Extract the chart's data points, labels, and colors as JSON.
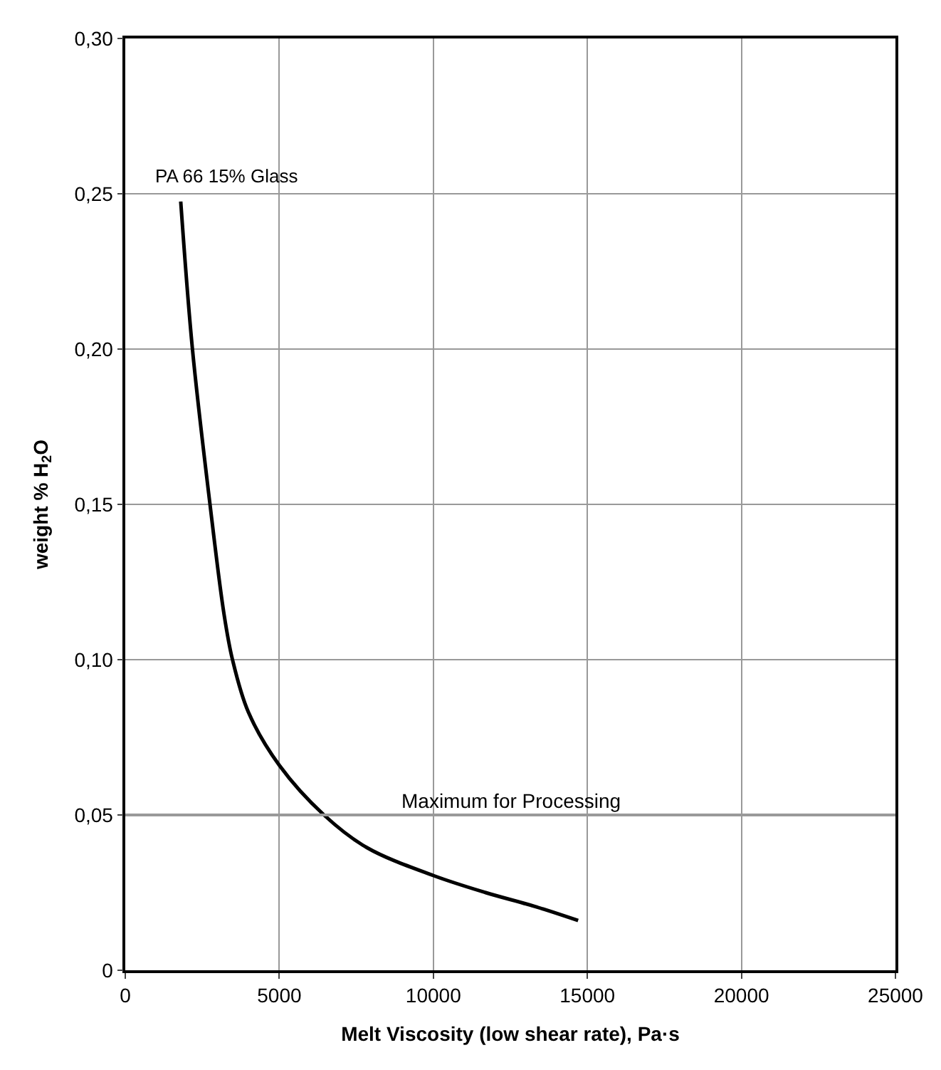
{
  "chart_data": {
    "type": "line",
    "xlabel": "Melt Viscosity (low shear rate), Pa·s",
    "ylabel": "weight % H$_{2}$O",
    "series": [
      {
        "name": "PA 66 15% Glass",
        "color": "#000000",
        "x": [
          1800,
          2180,
          2750,
          3200,
          3480,
          4000,
          5000,
          6450,
          7840,
          10000,
          11700,
          13310,
          14700
        ],
        "values": [
          0.2475,
          0.2,
          0.15,
          0.115,
          0.1,
          0.083,
          0.066,
          0.05,
          0.0395,
          0.0305,
          0.025,
          0.0205,
          0.016
        ]
      }
    ],
    "xlim": [
      0,
      25000
    ],
    "xticks": [
      0,
      5000,
      10000,
      15000,
      20000,
      25000
    ],
    "ylim": [
      0,
      0.3
    ],
    "yticks": [
      {
        "value": 0,
        "label": "0"
      },
      {
        "value": 0.05,
        "label": "0,05"
      },
      {
        "value": 0.1,
        "label": "0,10"
      },
      {
        "value": 0.15,
        "label": "0,15"
      },
      {
        "value": 0.2,
        "label": "0,20"
      },
      {
        "value": 0.25,
        "label": "0,25"
      },
      {
        "value": 0.3,
        "label": "0,30"
      }
    ],
    "ref_lines": [
      {
        "axis": "y",
        "value": 0.05,
        "label": "Maximum for Processing",
        "color": "#999999"
      }
    ],
    "grid": true,
    "legend": false,
    "marker": "none",
    "line_style": "solid"
  }
}
